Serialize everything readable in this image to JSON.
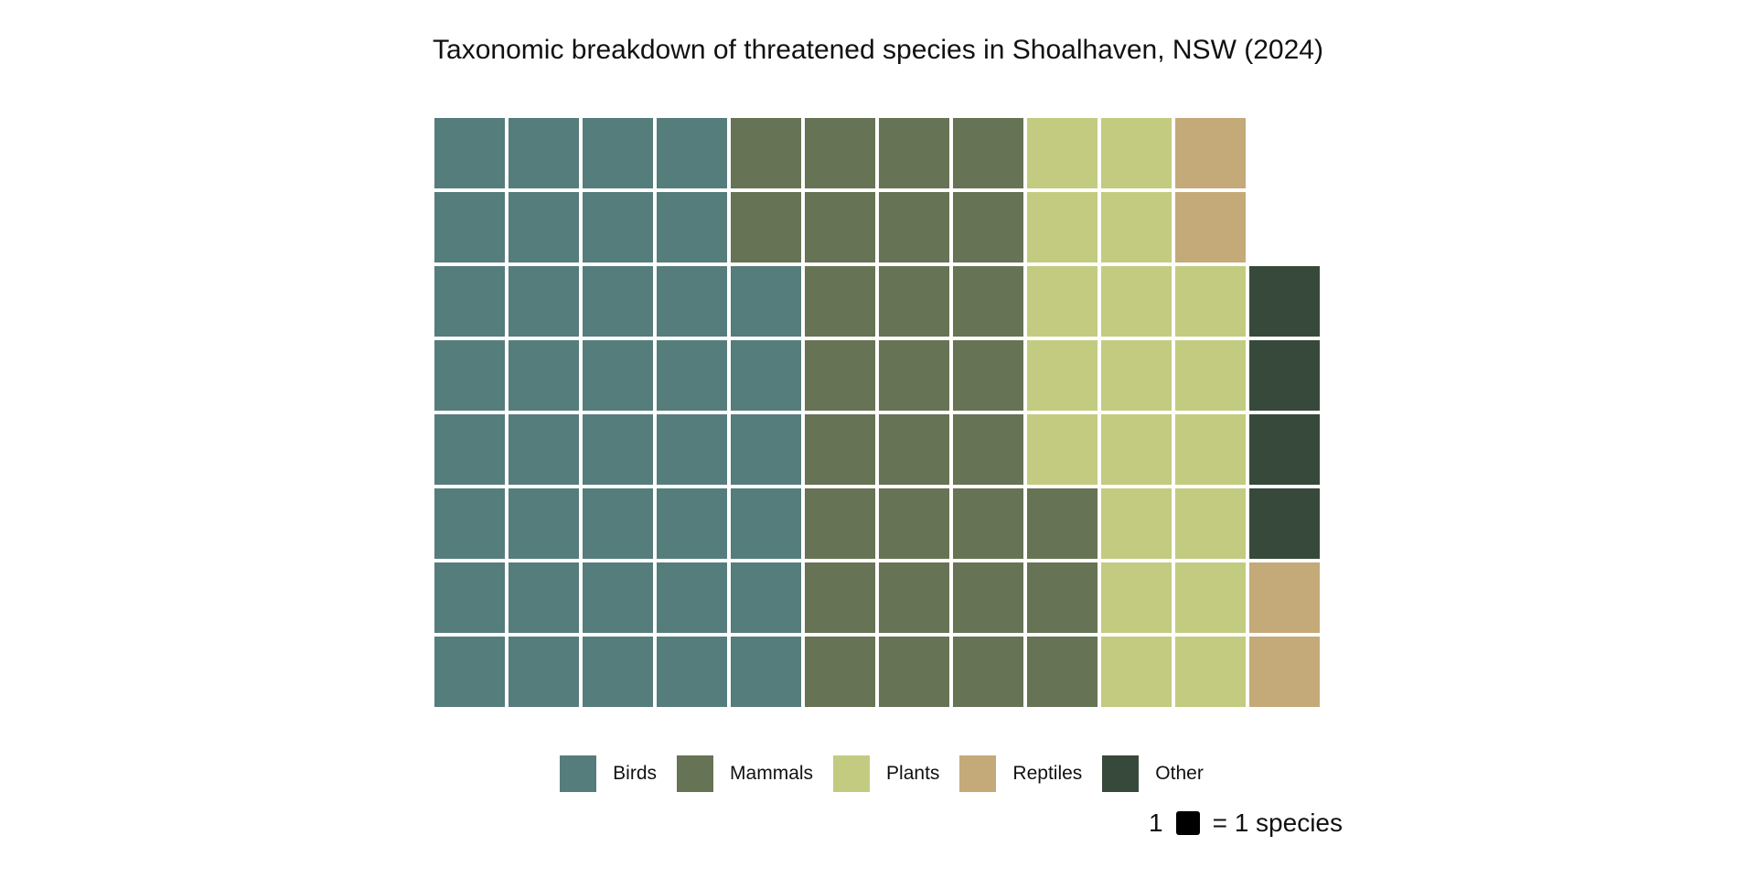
{
  "chart_data": {
    "type": "waffle",
    "title": "Taxonomic breakdown of threatened species in Shoalhaven, NSW (2024)",
    "rows": 8,
    "fill_order": "column-wise, bottom-to-top, left-to-right",
    "series": [
      {
        "name": "Birds",
        "value": 38,
        "color": "#557d7b"
      },
      {
        "name": "Mammals",
        "value": 29,
        "color": "#667354"
      },
      {
        "name": "Plants",
        "value": 19,
        "color": "#c3cb80"
      },
      {
        "name": "Reptiles",
        "value": 4,
        "color": "#c4aa78"
      },
      {
        "name": "Other",
        "value": 4,
        "color": "#37493a"
      }
    ],
    "legend_position": "bottom",
    "unit_legend": {
      "count": "1",
      "label": "= 1 species"
    }
  }
}
